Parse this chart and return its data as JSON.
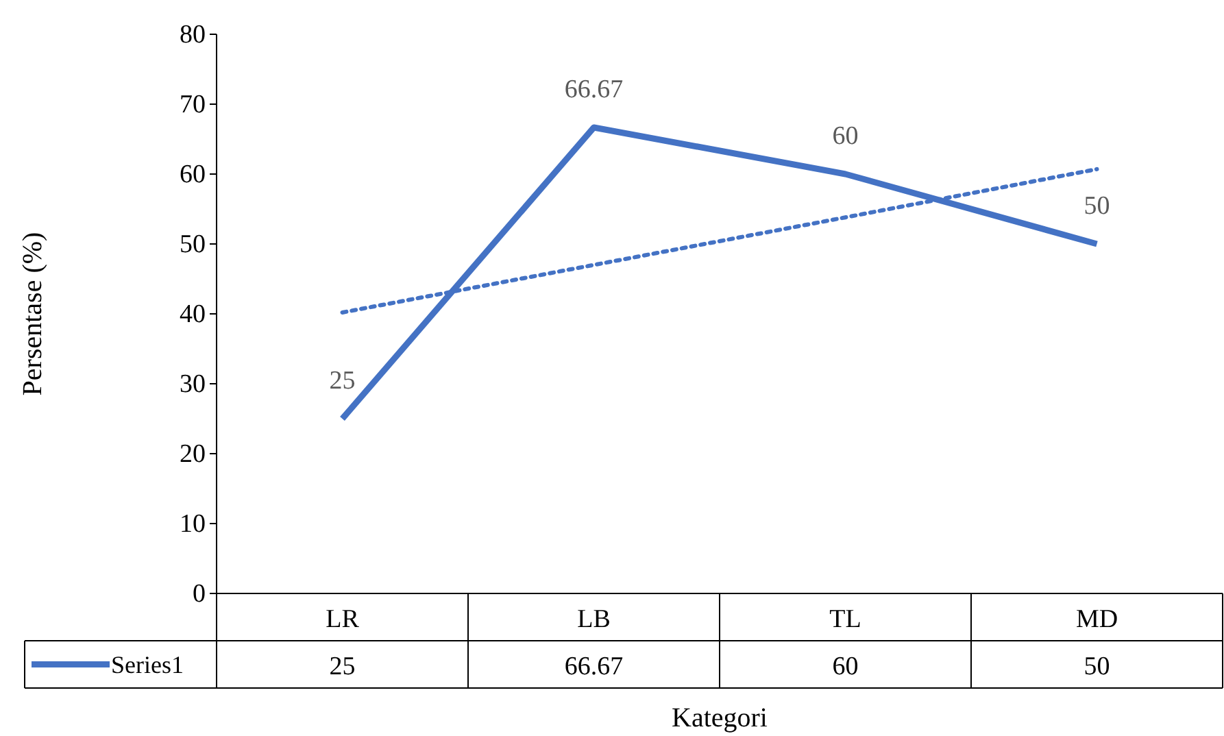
{
  "chart_data": {
    "type": "line",
    "xlabel": "Kategori",
    "ylabel": "Persentase (%)",
    "categories": [
      "LR",
      "LB",
      "TL",
      "MD"
    ],
    "series": [
      {
        "name": "Series1",
        "color": "#4472c4",
        "values": [
          25,
          66.67,
          60,
          50
        ],
        "value_labels": [
          "25",
          "66.67",
          "60",
          "50"
        ]
      },
      {
        "type": "line",
        "color": "#4472c4",
        "line_style": "dotted",
        "values": [
          40.2,
          47.0,
          53.8,
          60.7
        ]
      }
    ],
    "ylim": [
      0,
      80
    ],
    "yticks": [
      0,
      10,
      20,
      30,
      40,
      50,
      60,
      70,
      80
    ],
    "legend": "bottom",
    "grid": false,
    "marker": "none"
  }
}
